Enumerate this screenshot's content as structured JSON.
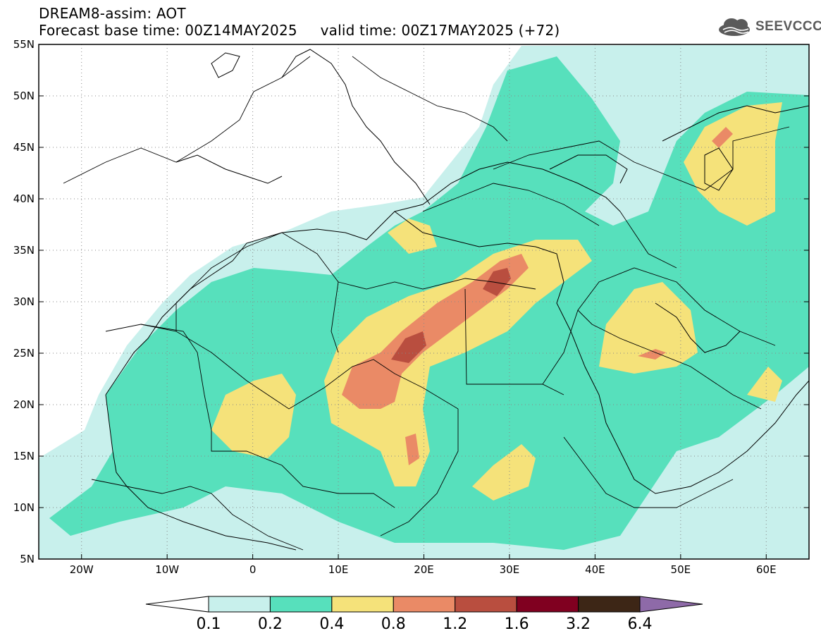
{
  "title": {
    "line1": "DREAM8-assim: AOT",
    "line2": "Forecast base time: 00Z14MAY2025     valid time: 00Z17MAY2025 (+72)"
  },
  "logo": {
    "text": "SEEVCCC",
    "icon": "cloud-icon",
    "color": "#5a5a5a"
  },
  "map": {
    "lon_range": [
      -25,
      65
    ],
    "lat_range": [
      5,
      55
    ],
    "lon_ticks": [
      {
        "lon": -20,
        "label": "20W"
      },
      {
        "lon": -10,
        "label": "10W"
      },
      {
        "lon": 0,
        "label": "0"
      },
      {
        "lon": 10,
        "label": "10E"
      },
      {
        "lon": 20,
        "label": "20E"
      },
      {
        "lon": 30,
        "label": "30E"
      },
      {
        "lon": 40,
        "label": "40E"
      },
      {
        "lon": 50,
        "label": "50E"
      },
      {
        "lon": 60,
        "label": "60E"
      }
    ],
    "lat_ticks": [
      {
        "lat": 55,
        "label": "55N"
      },
      {
        "lat": 50,
        "label": "50N"
      },
      {
        "lat": 45,
        "label": "45N"
      },
      {
        "lat": 40,
        "label": "40N"
      },
      {
        "lat": 35,
        "label": "35N"
      },
      {
        "lat": 30,
        "label": "30N"
      },
      {
        "lat": 25,
        "label": "25N"
      },
      {
        "lat": 20,
        "label": "20N"
      },
      {
        "lat": 15,
        "label": "15N"
      },
      {
        "lat": 10,
        "label": "10N"
      },
      {
        "lat": 5,
        "label": "5N"
      }
    ],
    "grid": "dotted"
  },
  "colorbar": {
    "colors": [
      "#c8f0ec",
      "#57e0bc",
      "#f5e27a",
      "#ea8a66",
      "#b94e3f",
      "#800020",
      "#3d2616",
      "#8e6aa8"
    ],
    "under_color": "#ffffff",
    "labels": [
      "0.1",
      "0.2",
      "0.4",
      "0.8",
      "1.2",
      "1.6",
      "3.2",
      "6.4"
    ]
  }
}
